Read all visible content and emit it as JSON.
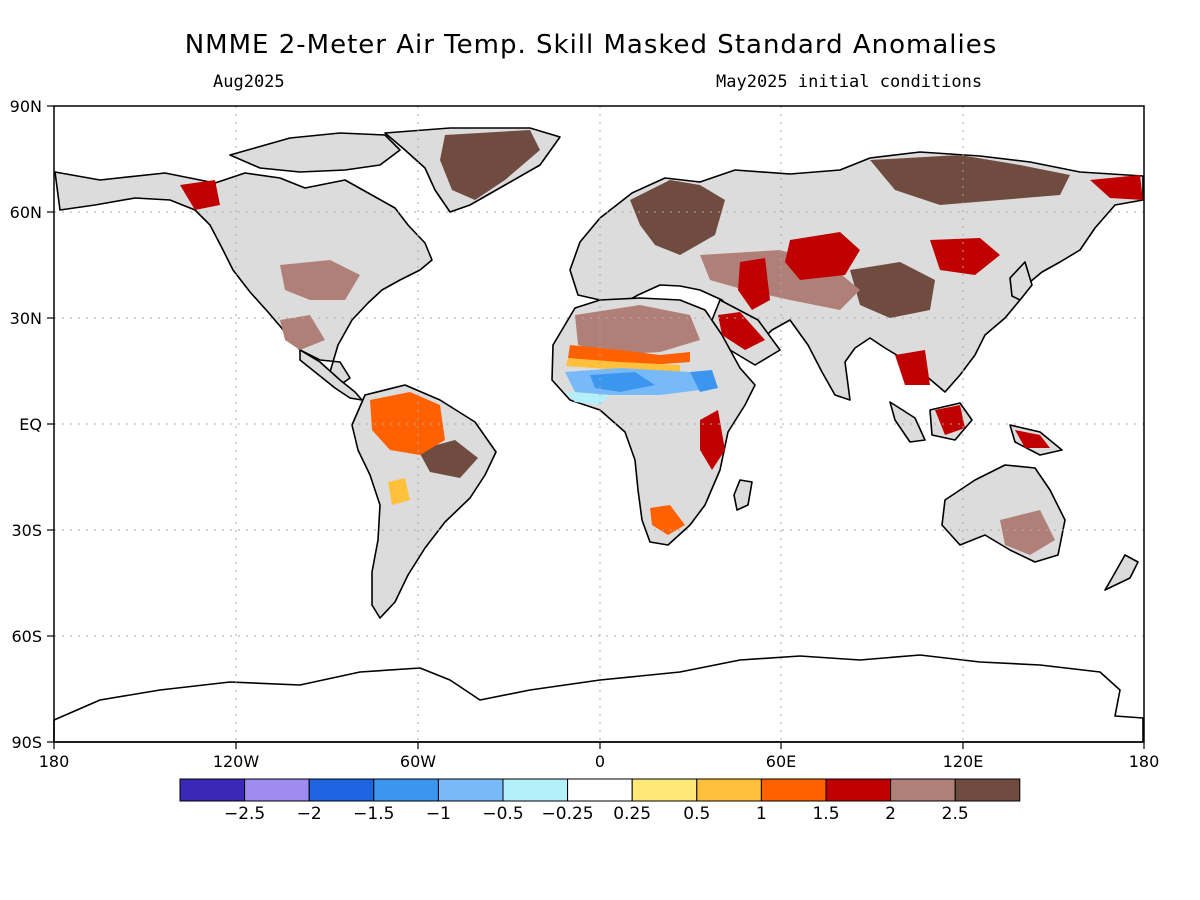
{
  "title": "NMME 2-Meter Air Temp. Skill Masked Standard Anomalies",
  "valid_month": "Aug2025",
  "init_text": "May2025 initial conditions",
  "lat_ticks": [
    "90N",
    "60N",
    "30N",
    "EQ",
    "30S",
    "60S",
    "90S"
  ],
  "lon_ticks": [
    "180",
    "120W",
    "60W",
    "0",
    "60E",
    "120E",
    "180"
  ],
  "colorbar": {
    "colors": [
      "#3b28b7",
      "#9f8cf0",
      "#1c64e0",
      "#3c96f0",
      "#78b9fa",
      "#b4f0fa",
      "#ffffff",
      "#ffe878",
      "#ffc03c",
      "#ff6000",
      "#c00000",
      "#b08078",
      "#704b40"
    ],
    "labels": [
      "-2.5",
      "-2",
      "-1.5",
      "-1",
      "-0.5",
      "-0.25",
      "0.25",
      "0.5",
      "1",
      "1.5",
      "2",
      "2.5"
    ]
  },
  "map_colors": {
    "land_masked": "#dcdcdc",
    "coast": "#000000",
    "grid": "#aaaaaa"
  }
}
